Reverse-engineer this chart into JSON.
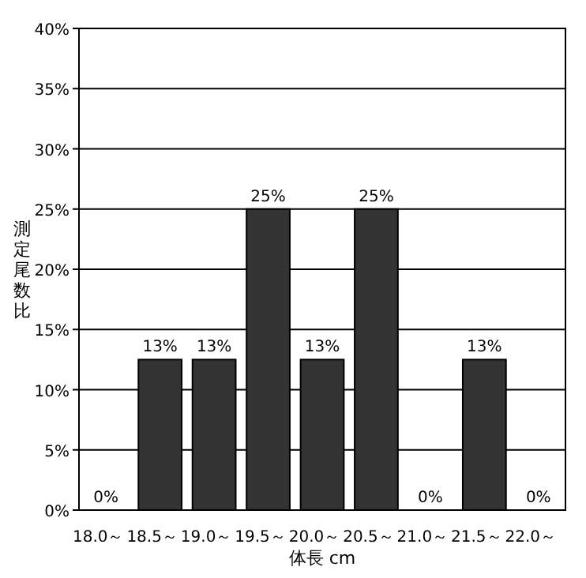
{
  "chart_data": {
    "type": "bar",
    "xlabel": "体長 cm",
    "ylabel": "測定尾数比",
    "categories": [
      "18.0～",
      "18.5～",
      "19.0～",
      "19.5～",
      "20.0～",
      "20.5～",
      "21.0～",
      "21.5～",
      "22.0～"
    ],
    "values": [
      0,
      12.5,
      12.5,
      25,
      12.5,
      25,
      0,
      12.5,
      0
    ],
    "value_labels": [
      "0%",
      "13%",
      "13%",
      "25%",
      "13%",
      "25%",
      "0%",
      "13%",
      "0%"
    ],
    "color": "#333333",
    "ylim": [
      0,
      40
    ],
    "yticks": [
      {
        "value": 0,
        "label": "0%"
      },
      {
        "value": 5,
        "label": "5%"
      },
      {
        "value": 10,
        "label": "10%"
      },
      {
        "value": 15,
        "label": "15%"
      },
      {
        "value": 20,
        "label": "20%"
      },
      {
        "value": 25,
        "label": "25%"
      },
      {
        "value": 30,
        "label": "30%"
      },
      {
        "value": 35,
        "label": "35%"
      },
      {
        "value": 40,
        "label": "40%"
      }
    ],
    "grid": "y"
  }
}
